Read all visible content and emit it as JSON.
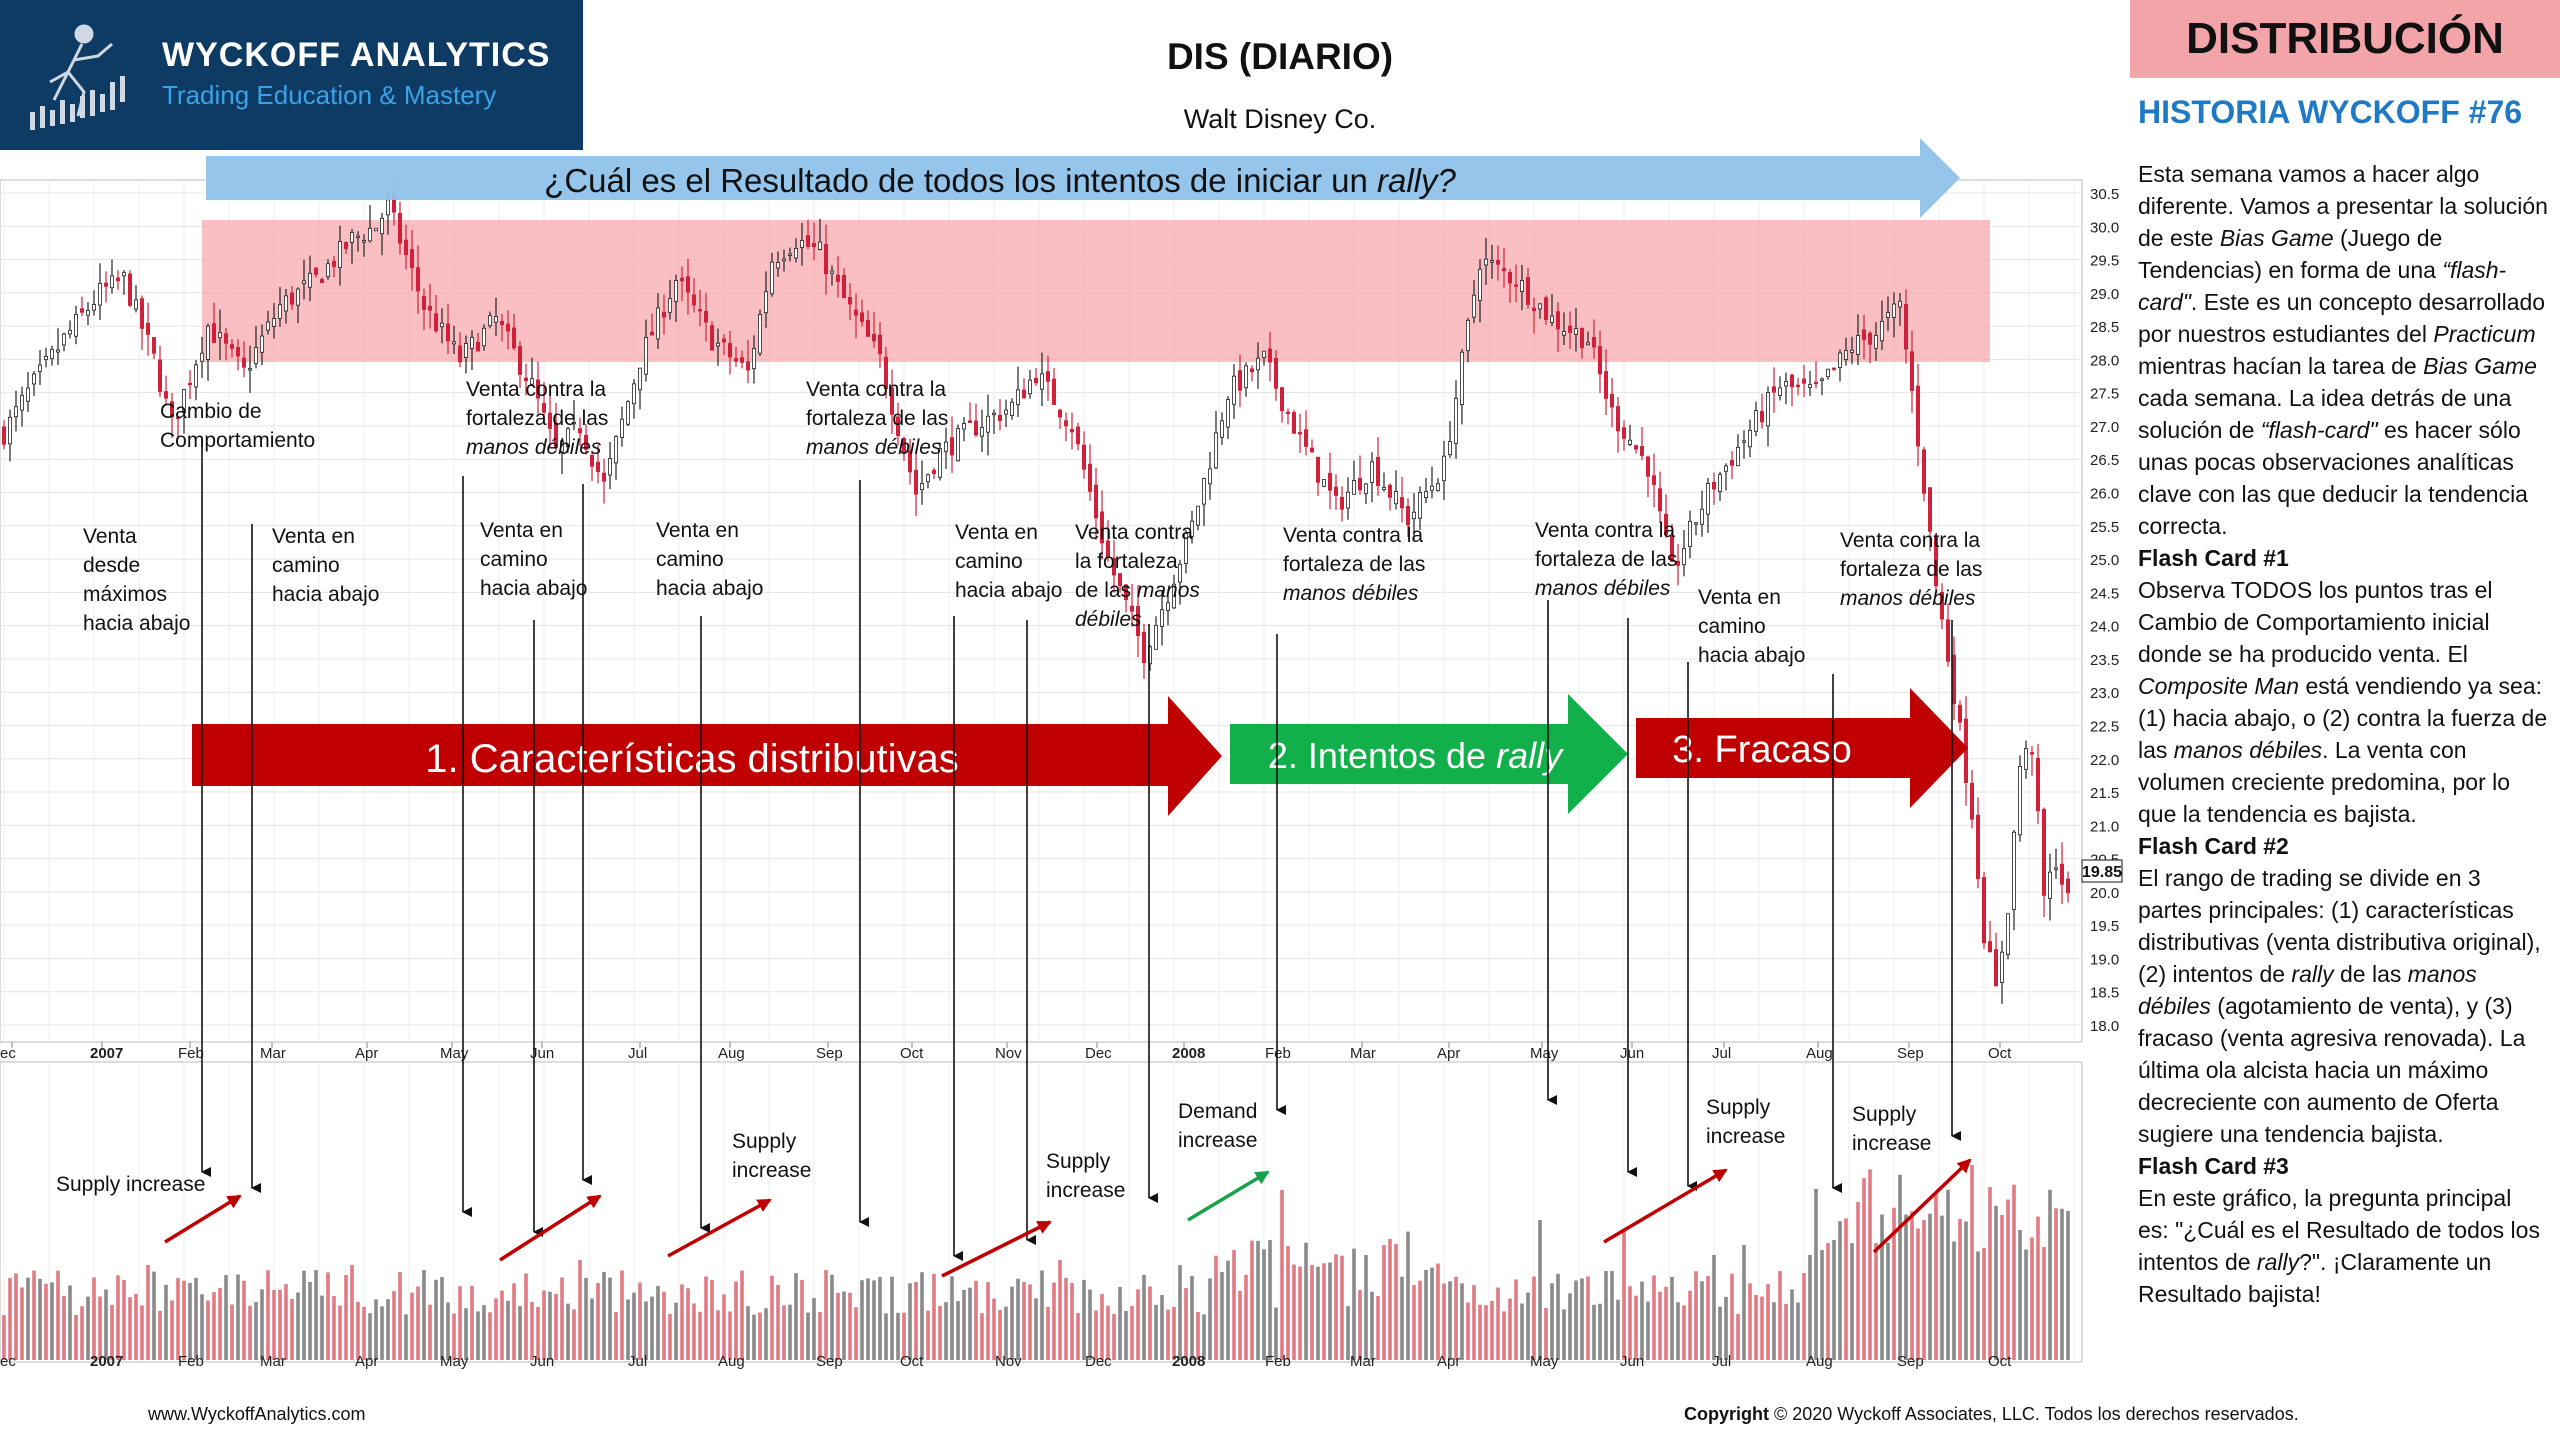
{
  "header": {
    "logo_title": "WYCKOFF ANALYTICS",
    "logo_subtitle": "Trading Education & Mastery",
    "chart_title": "DIS (DIARIO)",
    "chart_subtitle": "Walt Disney Co."
  },
  "sidebar": {
    "badge": "DISTRIBUCIÓN",
    "heading": "HISTORIA WYCKOFF #76",
    "intro": [
      {
        "t": "Esta semana vamos a hacer algo diferente. Vamos a presentar la solución de este "
      },
      {
        "t": "Bias Game",
        "i": true
      },
      {
        "t": " (Juego de Tendencias) en forma de una "
      },
      {
        "t": "“flash-card\"",
        "i": true
      },
      {
        "t": ". Este es un concepto desarrollado por nuestros estudiantes del "
      },
      {
        "t": "Practicum",
        "i": true
      },
      {
        "t": " mientras hacían la tarea de "
      },
      {
        "t": "Bias Game",
        "i": true
      },
      {
        "t": " cada semana. La idea detrás de una solución de "
      },
      {
        "t": "“flash-card\"",
        "i": true
      },
      {
        "t": " es hacer sólo unas pocas observaciones analíticas clave con las que deducir la tendencia correcta."
      }
    ],
    "card1_title": "Flash Card #1",
    "card1": [
      {
        "t": "Observa TODOS los puntos tras el Cambio de Comportamiento inicial donde se ha producido venta. El "
      },
      {
        "t": "Composite Man",
        "i": true
      },
      {
        "t": " está vendiendo ya sea: (1) hacia abajo, o (2) contra la fuerza de las "
      },
      {
        "t": "manos débiles",
        "i": true
      },
      {
        "t": ". La venta con volumen creciente predomina, por lo que la tendencia es bajista."
      }
    ],
    "card2_title": "Flash Card #2",
    "card2": [
      {
        "t": "El rango de trading se divide en 3 partes principales: (1) características distributivas (venta distributiva original), (2) intentos de "
      },
      {
        "t": "rally",
        "i": true
      },
      {
        "t": " de las "
      },
      {
        "t": "manos débiles",
        "i": true
      },
      {
        "t": " (agotamiento de venta), y (3) fracaso (venta agresiva renovada). La última ola alcista hacia un máximo decreciente con aumento de Oferta sugiere una tendencia bajista."
      }
    ],
    "card3_title": "Flash Card #3",
    "card3": [
      {
        "t": "En este gráfico, la pregunta principal es: \"¿Cuál es el Resultado de todos los intentos de "
      },
      {
        "t": "rally",
        "i": true
      },
      {
        "t": "?\". ¡Claramente un Resultado bajista!"
      }
    ]
  },
  "footer": {
    "website": "www.WyckoffAnalytics.com",
    "copyright_bold": "Copyright",
    "copyright_rest": " © 2020 Wyckoff Associates, LLC. Todos los derechos reservados."
  },
  "chart_data": {
    "type": "candlestick",
    "ticker": "DIS",
    "price_axis": {
      "min": 18.0,
      "max": 30.5,
      "step": 0.5,
      "side": "right",
      "ticks": [
        "30.5",
        "30.0",
        "29.5",
        "29.0",
        "28.5",
        "28.0",
        "27.5",
        "27.0",
        "26.5",
        "26.0",
        "25.5",
        "25.0",
        "24.5",
        "24.0",
        "23.5",
        "23.0",
        "22.5",
        "22.0",
        "21.5",
        "21.0",
        "20.5",
        "20.0",
        "19.5",
        "19.0",
        "18.5",
        "18.0"
      ]
    },
    "last_price": "19.85",
    "x_axis_labels": [
      "ec",
      "2007",
      "Feb",
      "Mar",
      "Apr",
      "May",
      "Jun",
      "Jul",
      "Aug",
      "Sep",
      "Oct",
      "Nov",
      "Dec",
      "2008",
      "Feb",
      "Mar",
      "Apr",
      "May",
      "Jun",
      "Jul",
      "Aug",
      "Sep",
      "Oct"
    ],
    "price_path": [
      [
        0,
        26.9
      ],
      [
        4,
        27.5
      ],
      [
        10,
        28.3
      ],
      [
        16,
        29.0
      ],
      [
        20,
        29.2
      ],
      [
        25,
        28.0
      ],
      [
        28,
        27.0
      ],
      [
        34,
        28.5
      ],
      [
        40,
        27.8
      ],
      [
        46,
        28.8
      ],
      [
        52,
        29.2
      ],
      [
        58,
        29.8
      ],
      [
        62,
        30.0
      ],
      [
        64,
        30.3
      ],
      [
        70,
        28.8
      ],
      [
        76,
        28.0
      ],
      [
        82,
        28.6
      ],
      [
        88,
        27.6
      ],
      [
        92,
        26.6
      ],
      [
        96,
        27.0
      ],
      [
        100,
        26.1
      ],
      [
        106,
        28.0
      ],
      [
        112,
        29.2
      ],
      [
        118,
        28.3
      ],
      [
        124,
        27.8
      ],
      [
        128,
        29.5
      ],
      [
        132,
        29.8
      ],
      [
        136,
        29.6
      ],
      [
        140,
        28.9
      ],
      [
        146,
        28.0
      ],
      [
        152,
        26.0
      ],
      [
        156,
        26.6
      ],
      [
        162,
        27.0
      ],
      [
        168,
        27.3
      ],
      [
        172,
        27.8
      ],
      [
        178,
        27.0
      ],
      [
        184,
        25.0
      ],
      [
        190,
        23.6
      ],
      [
        194,
        24.5
      ],
      [
        198,
        25.5
      ],
      [
        204,
        27.5
      ],
      [
        210,
        28.0
      ],
      [
        216,
        26.8
      ],
      [
        222,
        25.8
      ],
      [
        228,
        26.4
      ],
      [
        234,
        25.6
      ],
      [
        240,
        26.4
      ],
      [
        246,
        29.5
      ],
      [
        252,
        29.2
      ],
      [
        258,
        28.6
      ],
      [
        264,
        28.3
      ],
      [
        268,
        27.2
      ],
      [
        274,
        26.4
      ],
      [
        278,
        24.8
      ],
      [
        284,
        26.0
      ],
      [
        290,
        26.8
      ],
      [
        296,
        27.6
      ],
      [
        302,
        27.5
      ],
      [
        308,
        28.2
      ],
      [
        312,
        28.4
      ],
      [
        316,
        28.8
      ],
      [
        318,
        27.5
      ],
      [
        320,
        26.1
      ],
      [
        322,
        24.6
      ],
      [
        325,
        23.0
      ],
      [
        328,
        21.2
      ],
      [
        330,
        19.4
      ],
      [
        332,
        18.5
      ],
      [
        334,
        19.8
      ],
      [
        336,
        21.9
      ],
      [
        338,
        22.2
      ],
      [
        340,
        19.9
      ],
      [
        342,
        20.5
      ],
      [
        344,
        19.85
      ]
    ],
    "volume_note": "Volume histogram below price; red and grey bars, increases marked by arrows.",
    "banners": {
      "top": "¿Cuál es el Resultado de todos los intentos de iniciar un ",
      "top_italic": "rally?",
      "arrow1": "1. Características distributivas",
      "arrow2_a": "2. Intentos de ",
      "arrow2_b": "rally",
      "arrow3": "3. Fracaso"
    },
    "annotations": [
      {
        "id": "a1",
        "lines": [
          "Cambio de",
          "Comportamiento"
        ]
      },
      {
        "id": "a2",
        "lines": [
          "Venta",
          "desde",
          "máximos",
          "hacia abajo"
        ]
      },
      {
        "id": "a3",
        "lines": [
          "Venta en",
          "camino",
          "hacia abajo"
        ]
      },
      {
        "id": "a4",
        "lines": [
          "Venta contra la",
          "fortaleza de las"
        ],
        "italic": "manos débiles"
      },
      {
        "id": "a5",
        "lines": [
          "Venta en",
          "camino",
          "hacia abajo"
        ]
      },
      {
        "id": "a6",
        "lines": [
          "Venta en",
          "camino",
          "hacia abajo"
        ]
      },
      {
        "id": "a7",
        "lines": [
          "Venta contra la",
          "fortaleza de las"
        ],
        "italic": "manos débiles"
      },
      {
        "id": "a8",
        "lines": [
          "Venta en",
          "camino",
          "hacia abajo"
        ]
      },
      {
        "id": "a9",
        "lines": [
          "Venta contra",
          "la fortaleza",
          "de las "
        ],
        "italic_inline": "manos",
        "italic": "débiles"
      },
      {
        "id": "a10",
        "lines": [
          "Venta contra la",
          "fortaleza de las"
        ],
        "italic": "manos débiles"
      },
      {
        "id": "a11",
        "lines": [
          "Venta contra la",
          "fortaleza de las"
        ],
        "italic": "manos débiles"
      },
      {
        "id": "a12",
        "lines": [
          "Venta en",
          "camino",
          "hacia abajo"
        ]
      },
      {
        "id": "a13",
        "lines": [
          "Venta contra la",
          "fortaleza de las"
        ],
        "italic": "manos débiles"
      }
    ],
    "volume_labels": [
      {
        "id": "v1",
        "lines": [
          "Supply increase"
        ]
      },
      {
        "id": "v2",
        "lines": [
          "Supply",
          "increase"
        ]
      },
      {
        "id": "v3",
        "lines": [
          "Supply",
          "increase"
        ]
      },
      {
        "id": "v4",
        "lines": [
          "Demand",
          "increase"
        ]
      },
      {
        "id": "v5",
        "lines": [
          "Supply",
          "increase"
        ]
      },
      {
        "id": "v6",
        "lines": [
          "Supply",
          "increase"
        ]
      }
    ]
  }
}
